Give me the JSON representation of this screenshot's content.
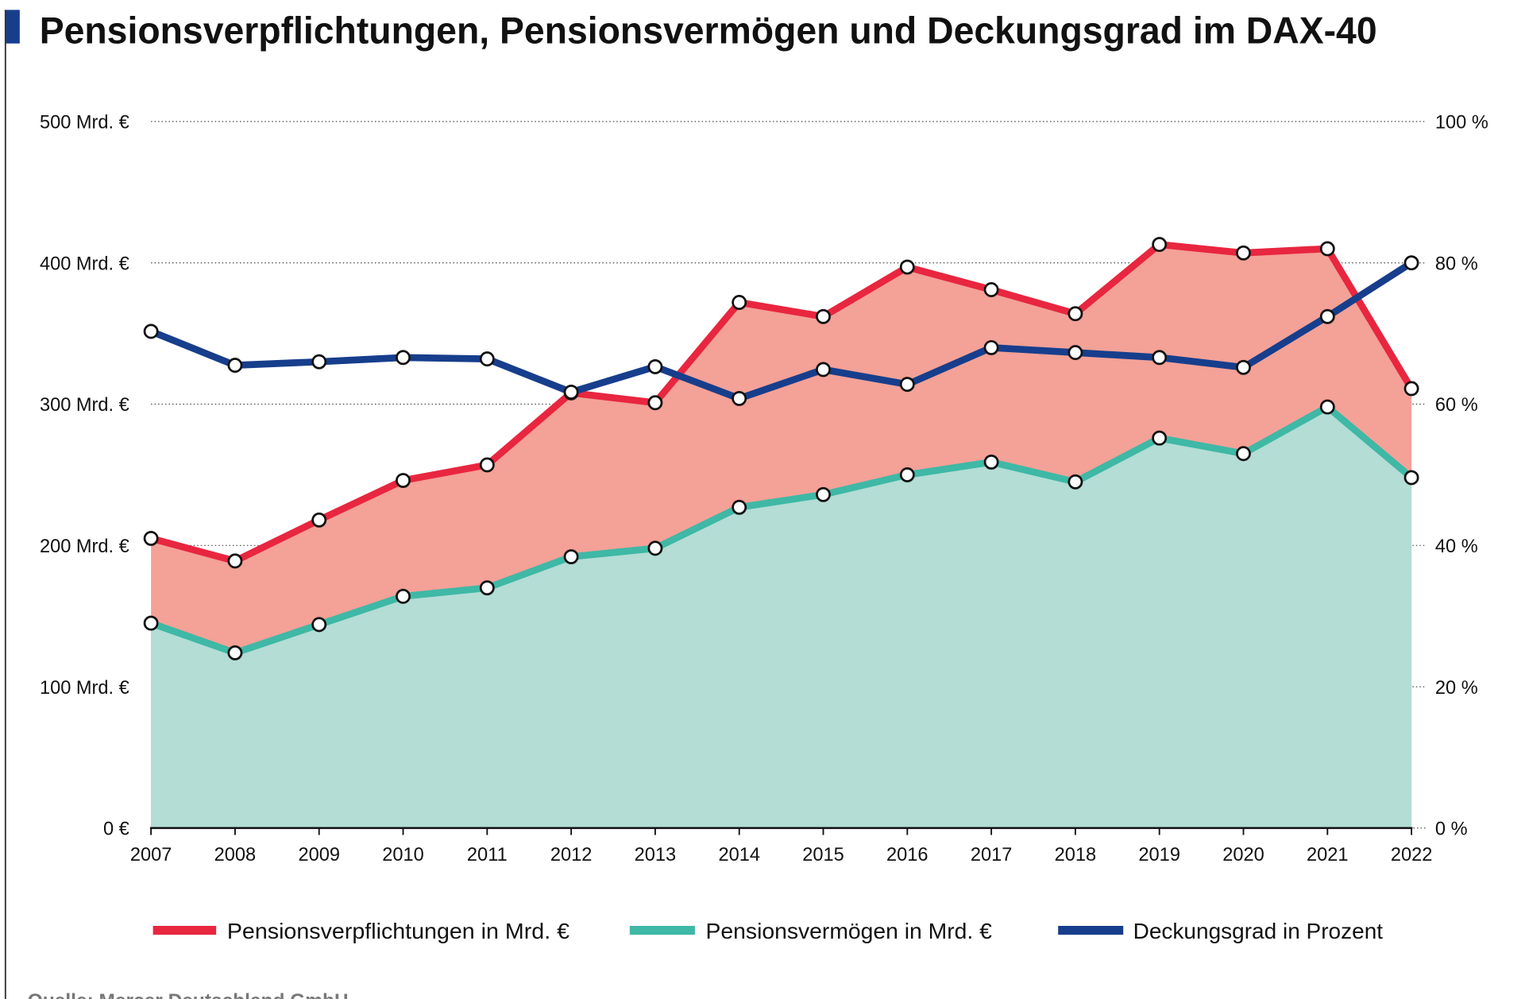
{
  "chart_data": {
    "type": "line",
    "title": "Pensionsverpflichtungen, Pensionsvermögen und Deckungsgrad im DAX-40",
    "source": "Quelle: Mercer Deutschland GmbH",
    "x": [
      2007,
      2008,
      2009,
      2010,
      2011,
      2012,
      2013,
      2014,
      2015,
      2016,
      2017,
      2018,
      2019,
      2020,
      2021,
      2022
    ],
    "x_tick_labels": [
      "2007",
      "2008",
      "2009",
      "2010",
      "2011",
      "2012",
      "2013",
      "2014",
      "2015",
      "2016",
      "2017",
      "2018",
      "2019",
      "2020",
      "2021",
      "2022"
    ],
    "y_left": {
      "range": [
        0,
        500
      ],
      "ticks": [
        0,
        100,
        200,
        300,
        400,
        500
      ],
      "tick_labels": [
        "0 €",
        "100 Mrd. €",
        "200 Mrd. €",
        "300 Mrd. €",
        "400 Mrd. €",
        "500 Mrd. €"
      ]
    },
    "y_right": {
      "range": [
        0,
        100
      ],
      "ticks": [
        0,
        20,
        40,
        60,
        80,
        100
      ],
      "tick_labels": [
        "0 %",
        "20 %",
        "40 %",
        "60 %",
        "80 %",
        "100 %"
      ]
    },
    "grid": "horizontal dotted",
    "legend_position": "bottom",
    "series": [
      {
        "name": "Pensionsverpflichtungen in Mrd. €",
        "axis": "left",
        "color": "#e8263f",
        "fill": "#f4a197",
        "values": [
          205,
          189,
          218,
          246,
          257,
          308,
          301,
          372,
          362,
          397,
          381,
          364,
          413,
          407,
          410,
          311
        ]
      },
      {
        "name": "Pensionsvermögen in Mrd. €",
        "axis": "left",
        "color": "#3fb8a6",
        "fill": "#b3ddd5",
        "values": [
          145,
          124,
          144,
          164,
          170,
          192,
          198,
          227,
          236,
          250,
          259,
          245,
          276,
          265,
          298,
          248
        ]
      },
      {
        "name": "Deckungsgrad in Prozent",
        "axis": "right",
        "color": "#173e8c",
        "values": [
          70.3,
          65.5,
          66,
          66.6,
          66.4,
          61.7,
          65.3,
          60.8,
          64.9,
          62.8,
          68,
          67.3,
          66.6,
          65.2,
          72.4,
          80
        ]
      }
    ],
    "accent_color": "#173e8c"
  }
}
